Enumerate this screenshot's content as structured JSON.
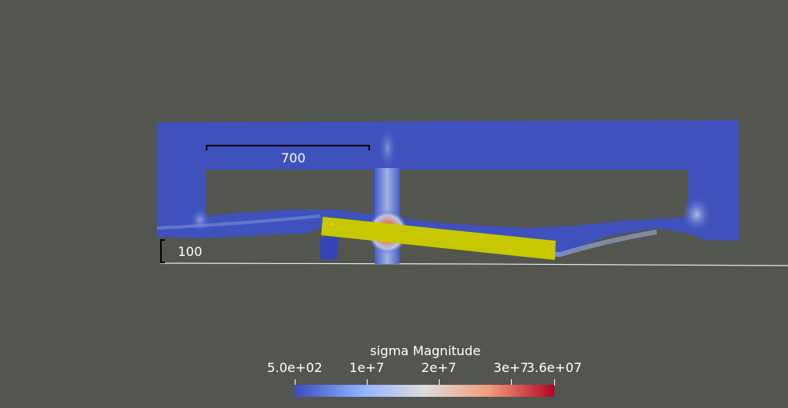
{
  "scene": {
    "background": "#53554f",
    "dimension_width_label": "700",
    "dimension_height_label": "100",
    "rigid_bar_color": "#c8c800"
  },
  "colorbar": {
    "title": "sigma Magnitude",
    "ticks": [
      {
        "label": "5.0e+02",
        "value": 500
      },
      {
        "label": "1e+7",
        "value": 10000000
      },
      {
        "label": "2e+7",
        "value": 20000000
      },
      {
        "label": "3e+7",
        "value": 30000000
      },
      {
        "label": "3.6e+07",
        "value": 36000000
      }
    ],
    "range": [
      500,
      36000000
    ],
    "colors": [
      "#3b4cc0",
      "#8db0fe",
      "#dddddd",
      "#f49a7b",
      "#b40426"
    ]
  }
}
